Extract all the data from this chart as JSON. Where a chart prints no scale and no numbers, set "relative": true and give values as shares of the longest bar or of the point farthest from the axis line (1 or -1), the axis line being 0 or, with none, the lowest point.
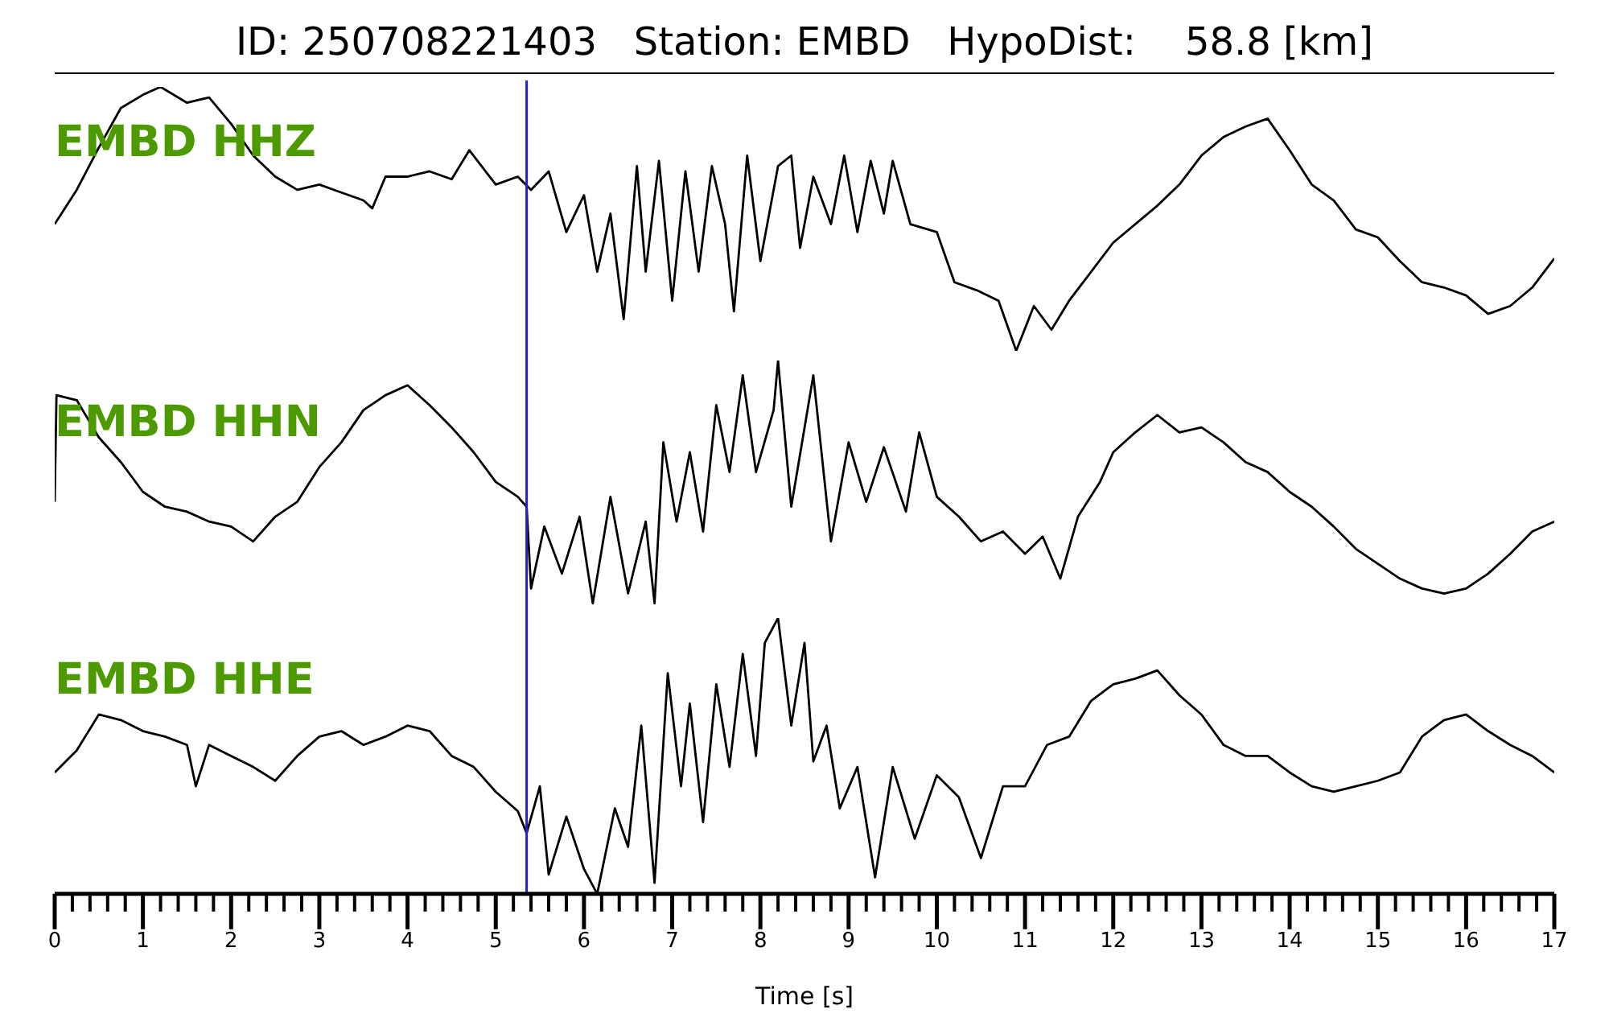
{
  "chart_data": [
    {
      "type": "line",
      "title": "ID: 250708221403   Station: EMBD   HypoDist:    58.8 [km]",
      "relative": true,
      "xlim": [
        0,
        17
      ],
      "tick_labels": false,
      "marker": "none",
      "line_style": "solid",
      "ref_lines": [
        {
          "axis": "x",
          "value": 5.35,
          "color": "#2222cc"
        }
      ],
      "series": [
        {
          "name": "EMBD HHZ",
          "color": "#000000",
          "x": [
            0,
            0.25,
            0.5,
            0.75,
            1.0,
            1.2,
            1.5,
            1.75,
            2.0,
            2.25,
            2.5,
            2.75,
            3.0,
            3.25,
            3.5,
            3.6,
            3.75,
            4.0,
            4.25,
            4.5,
            4.7,
            5.0,
            5.25,
            5.4,
            5.6,
            5.8,
            6.0,
            6.15,
            6.3,
            6.45,
            6.6,
            6.7,
            6.85,
            7.0,
            7.15,
            7.3,
            7.45,
            7.6,
            7.7,
            7.85,
            8.0,
            8.2,
            8.35,
            8.45,
            8.6,
            8.8,
            8.95,
            9.1,
            9.25,
            9.4,
            9.5,
            9.7,
            10.0,
            10.2,
            10.45,
            10.7,
            10.9,
            11.1,
            11.3,
            11.5,
            11.75,
            12.0,
            12.5,
            12.75,
            13.0,
            13.25,
            13.5,
            13.75,
            14.0,
            14.25,
            14.5,
            14.75,
            15.0,
            15.25,
            15.5,
            15.75,
            16.0,
            16.25,
            16.5,
            16.75,
            17.0
          ],
          "values": [
            0.48,
            0.61,
            0.77,
            0.92,
            0.97,
            1.0,
            0.94,
            0.96,
            0.86,
            0.74,
            0.66,
            0.61,
            0.63,
            0.6,
            0.57,
            0.54,
            0.66,
            0.66,
            0.68,
            0.65,
            0.76,
            0.63,
            0.66,
            0.61,
            0.68,
            0.45,
            0.59,
            0.3,
            0.52,
            0.12,
            0.7,
            0.3,
            0.72,
            0.19,
            0.68,
            0.3,
            0.7,
            0.48,
            0.15,
            0.74,
            0.34,
            0.7,
            0.74,
            0.39,
            0.66,
            0.48,
            0.74,
            0.45,
            0.72,
            0.52,
            0.72,
            0.48,
            0.45,
            0.26,
            0.23,
            0.19,
            0,
            0.17,
            0.08,
            0.19,
            0.3,
            0.41,
            0.55,
            0.63,
            0.74,
            0.81,
            0.85,
            0.88,
            0.76,
            0.63,
            0.57,
            0.46,
            0.43,
            0.34,
            0.26,
            0.24,
            0.21,
            0.14,
            0.17,
            0.24,
            0.35
          ]
        }
      ]
    },
    {
      "type": "line",
      "relative": true,
      "xlim": [
        0,
        17
      ],
      "tick_labels": false,
      "marker": "none",
      "line_style": "solid",
      "ref_lines": [
        {
          "axis": "x",
          "value": 5.35,
          "color": "#2222cc"
        }
      ],
      "series": [
        {
          "name": "EMBD HHN",
          "color": "#000000",
          "x": [
            0,
            0.02,
            0.25,
            0.5,
            0.75,
            1.0,
            1.25,
            1.5,
            1.75,
            2.0,
            2.25,
            2.5,
            2.75,
            3.0,
            3.25,
            3.5,
            3.75,
            4.0,
            4.25,
            4.5,
            4.75,
            5.0,
            5.25,
            5.35,
            5.4,
            5.55,
            5.75,
            5.95,
            6.1,
            6.3,
            6.5,
            6.7,
            6.8,
            6.9,
            7.05,
            7.2,
            7.35,
            7.5,
            7.65,
            7.8,
            7.95,
            8.15,
            8.2,
            8.35,
            8.6,
            8.8,
            9.0,
            9.2,
            9.4,
            9.65,
            9.8,
            10.0,
            10.25,
            10.5,
            10.75,
            11.0,
            11.2,
            11.4,
            11.6,
            11.85,
            12.0,
            12.25,
            12.5,
            12.75,
            13.0,
            13.25,
            13.5,
            13.75,
            14.0,
            14.25,
            14.5,
            14.75,
            15.0,
            15.25,
            15.5,
            15.75,
            16.0,
            16.25,
            16.5,
            16.75,
            17.0
          ],
          "values": [
            0.43,
            0.86,
            0.84,
            0.69,
            0.59,
            0.47,
            0.41,
            0.39,
            0.35,
            0.33,
            0.27,
            0.37,
            0.43,
            0.57,
            0.67,
            0.8,
            0.86,
            0.9,
            0.82,
            0.73,
            0.63,
            0.51,
            0.45,
            0.41,
            0.08,
            0.33,
            0.14,
            0.37,
            0.02,
            0.45,
            0.06,
            0.35,
            0.02,
            0.67,
            0.35,
            0.63,
            0.31,
            0.82,
            0.55,
            0.94,
            0.55,
            0.8,
            1.0,
            0.41,
            0.94,
            0.27,
            0.67,
            0.43,
            0.65,
            0.39,
            0.71,
            0.45,
            0.37,
            0.27,
            0.31,
            0.22,
            0.29,
            0.12,
            0.37,
            0.51,
            0.63,
            0.71,
            0.78,
            0.71,
            0.73,
            0.67,
            0.59,
            0.55,
            0.47,
            0.41,
            0.33,
            0.24,
            0.18,
            0.12,
            0.08,
            0.06,
            0.08,
            0.14,
            0.22,
            0.31,
            0.35
          ]
        }
      ]
    },
    {
      "type": "line",
      "relative": true,
      "xlim": [
        0,
        17
      ],
      "xlabel": "Time [s]",
      "tick_labels": "x",
      "marker": "none",
      "line_style": "solid",
      "xticks": [
        0,
        {
          "value": 0.2,
          "label": null
        },
        {
          "value": 0.4,
          "label": null
        },
        {
          "value": 0.6,
          "label": null
        },
        {
          "value": 0.8,
          "label": null
        },
        1,
        {
          "value": 1.2,
          "label": null
        },
        {
          "value": 1.4,
          "label": null
        },
        {
          "value": 1.6,
          "label": null
        },
        {
          "value": 1.8,
          "label": null
        },
        2,
        {
          "value": 2.2,
          "label": null
        },
        {
          "value": 2.4,
          "label": null
        },
        {
          "value": 2.6,
          "label": null
        },
        {
          "value": 2.8,
          "label": null
        },
        3,
        {
          "value": 3.2,
          "label": null
        },
        {
          "value": 3.4,
          "label": null
        },
        {
          "value": 3.6,
          "label": null
        },
        {
          "value": 3.8,
          "label": null
        },
        4,
        {
          "value": 4.2,
          "label": null
        },
        {
          "value": 4.4,
          "label": null
        },
        {
          "value": 4.6,
          "label": null
        },
        {
          "value": 4.8,
          "label": null
        },
        5,
        {
          "value": 5.2,
          "label": null
        },
        {
          "value": 5.4,
          "label": null
        },
        {
          "value": 5.6,
          "label": null
        },
        {
          "value": 5.8,
          "label": null
        },
        6,
        {
          "value": 6.2,
          "label": null
        },
        {
          "value": 6.4,
          "label": null
        },
        {
          "value": 6.6,
          "label": null
        },
        {
          "value": 6.8,
          "label": null
        },
        7,
        {
          "value": 7.2,
          "label": null
        },
        {
          "value": 7.4,
          "label": null
        },
        {
          "value": 7.6,
          "label": null
        },
        {
          "value": 7.8,
          "label": null
        },
        8,
        {
          "value": 8.2,
          "label": null
        },
        {
          "value": 8.4,
          "label": null
        },
        {
          "value": 8.6,
          "label": null
        },
        {
          "value": 8.8,
          "label": null
        },
        9,
        {
          "value": 9.2,
          "label": null
        },
        {
          "value": 9.4,
          "label": null
        },
        {
          "value": 9.6,
          "label": null
        },
        {
          "value": 9.8,
          "label": null
        },
        10,
        {
          "value": 10.2,
          "label": null
        },
        {
          "value": 10.4,
          "label": null
        },
        {
          "value": 10.6,
          "label": null
        },
        {
          "value": 10.8,
          "label": null
        },
        11,
        {
          "value": 11.2,
          "label": null
        },
        {
          "value": 11.4,
          "label": null
        },
        {
          "value": 11.6,
          "label": null
        },
        {
          "value": 11.8,
          "label": null
        },
        12,
        {
          "value": 12.2,
          "label": null
        },
        {
          "value": 12.4,
          "label": null
        },
        {
          "value": 12.6,
          "label": null
        },
        {
          "value": 12.8,
          "label": null
        },
        13,
        {
          "value": 13.2,
          "label": null
        },
        {
          "value": 13.4,
          "label": null
        },
        {
          "value": 13.6,
          "label": null
        },
        {
          "value": 13.8,
          "label": null
        },
        14,
        {
          "value": 14.2,
          "label": null
        },
        {
          "value": 14.4,
          "label": null
        },
        {
          "value": 14.6,
          "label": null
        },
        {
          "value": 14.8,
          "label": null
        },
        15,
        {
          "value": 15.2,
          "label": null
        },
        {
          "value": 15.4,
          "label": null
        },
        {
          "value": 15.6,
          "label": null
        },
        {
          "value": 15.8,
          "label": null
        },
        16,
        {
          "value": 16.2,
          "label": null
        },
        {
          "value": 16.4,
          "label": null
        },
        {
          "value": 16.6,
          "label": null
        },
        {
          "value": 16.8,
          "label": null
        },
        17
      ],
      "ref_lines": [
        {
          "axis": "x",
          "value": 5.35,
          "color": "#2222cc"
        }
      ],
      "series": [
        {
          "name": "EMBD HHE",
          "color": "#000000",
          "x": [
            0,
            0.25,
            0.5,
            0.75,
            1.0,
            1.25,
            1.5,
            1.6,
            1.75,
            2.0,
            2.25,
            2.5,
            2.75,
            3.0,
            3.25,
            3.5,
            3.75,
            4.0,
            4.25,
            4.5,
            4.75,
            5.0,
            5.25,
            5.35,
            5.5,
            5.6,
            5.8,
            6.0,
            6.15,
            6.35,
            6.5,
            6.65,
            6.8,
            6.95,
            7.1,
            7.2,
            7.35,
            7.5,
            7.65,
            7.8,
            7.95,
            8.05,
            8.2,
            8.35,
            8.5,
            8.6,
            8.75,
            8.9,
            9.1,
            9.3,
            9.5,
            9.75,
            10.0,
            10.25,
            10.5,
            10.75,
            11.0,
            11.25,
            11.5,
            11.75,
            12.0,
            12.25,
            12.5,
            12.75,
            13.0,
            13.25,
            13.5,
            13.75,
            14.0,
            14.25,
            14.5,
            14.75,
            15.0,
            15.25,
            15.5,
            15.75,
            16.0,
            16.25,
            16.5,
            16.75,
            17.0
          ],
          "values": [
            0.44,
            0.52,
            0.65,
            0.63,
            0.59,
            0.57,
            0.54,
            0.39,
            0.54,
            0.5,
            0.46,
            0.41,
            0.5,
            0.57,
            0.59,
            0.54,
            0.57,
            0.61,
            0.59,
            0.5,
            0.46,
            0.37,
            0.3,
            0.22,
            0.39,
            0.07,
            0.28,
            0.09,
            0,
            0.31,
            0.17,
            0.61,
            0.04,
            0.8,
            0.39,
            0.69,
            0.26,
            0.76,
            0.46,
            0.87,
            0.5,
            0.91,
            1.0,
            0.61,
            0.91,
            0.48,
            0.61,
            0.31,
            0.46,
            0.06,
            0.46,
            0.2,
            0.43,
            0.35,
            0.13,
            0.39,
            0.39,
            0.54,
            0.57,
            0.7,
            0.76,
            0.78,
            0.81,
            0.72,
            0.65,
            0.54,
            0.5,
            0.5,
            0.44,
            0.39,
            0.37,
            0.39,
            0.41,
            0.44,
            0.57,
            0.63,
            0.65,
            0.59,
            0.54,
            0.5,
            0.44
          ]
        }
      ]
    }
  ]
}
